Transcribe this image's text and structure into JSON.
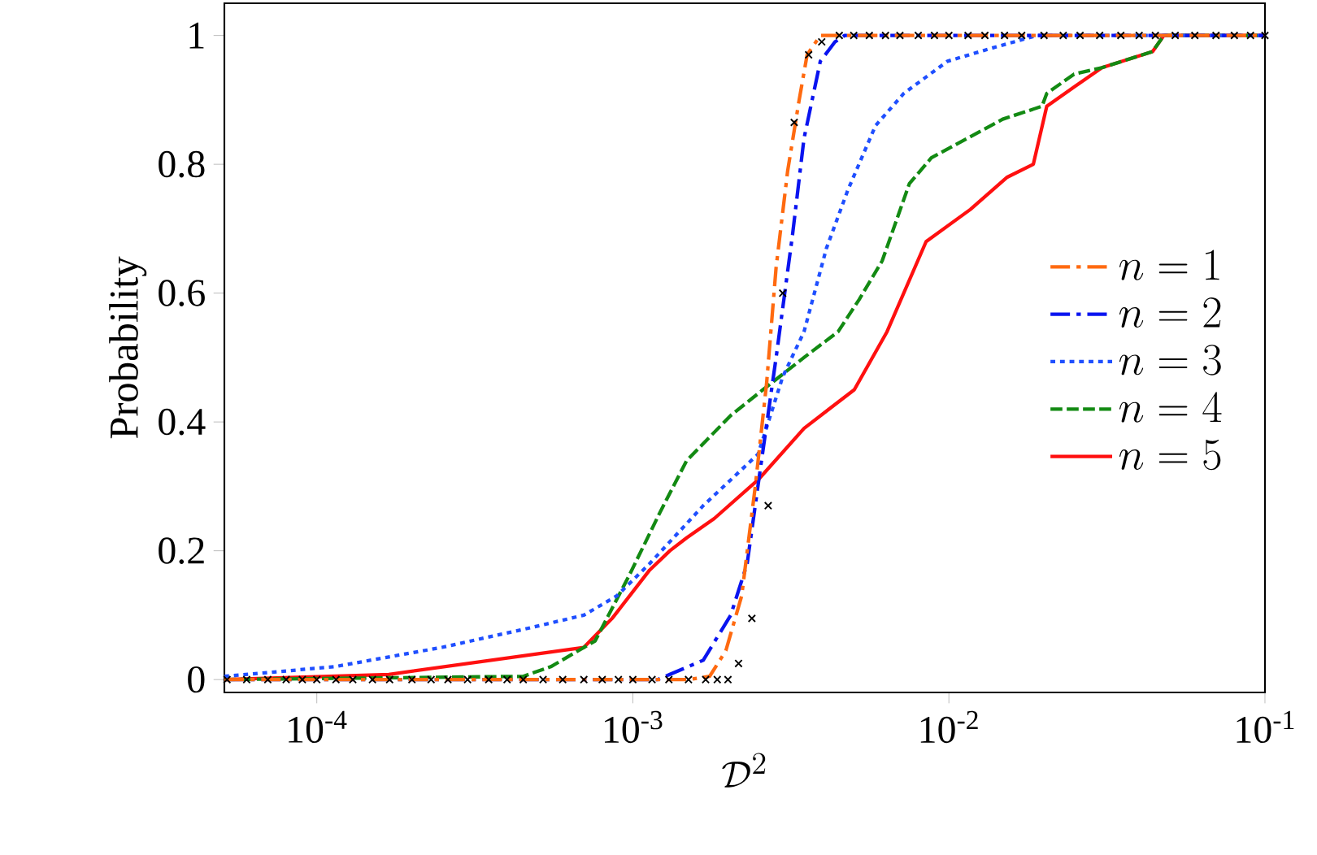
{
  "chart_data": {
    "type": "line",
    "xlabel": "\\mathcal{D}^2",
    "ylabel": "Probability",
    "log": "x",
    "xlim": [
      5.1e-05,
      0.1
    ],
    "ylim": [
      -0.02,
      1.05
    ],
    "xticks": [
      {
        "value": 0.0001,
        "label": "10$^{-4}$"
      },
      {
        "value": 0.001,
        "label": "10$^{-3}$"
      },
      {
        "value": 0.01,
        "label": "10$^{-2}$"
      },
      {
        "value": 0.1,
        "label": "10$^{-1}$"
      }
    ],
    "yticks": [
      {
        "value": 0,
        "label": "0"
      },
      {
        "value": 0.2,
        "label": "0.2"
      },
      {
        "value": 0.4,
        "label": "0.4"
      },
      {
        "value": 0.6,
        "label": "0.6"
      },
      {
        "value": 0.8,
        "label": "0.8"
      },
      {
        "value": 1,
        "label": "1"
      }
    ],
    "legend": "right",
    "grid": false,
    "marker": "none",
    "series": [
      {
        "name": "n = 1",
        "color": "#ff6a10",
        "line_style": "dashdot",
        "x": [
          5.1e-05,
          0.0015,
          0.00175,
          0.00197,
          0.00221,
          0.00244,
          0.00265,
          0.00284,
          0.00309,
          0.00336,
          0.00356,
          0.00392,
          0.1
        ],
        "values": [
          0,
          0,
          0.005,
          0.045,
          0.13,
          0.3,
          0.46,
          0.64,
          0.79,
          0.9,
          0.97,
          1,
          1
        ]
      },
      {
        "name": "n = 2",
        "color": "#0a14f0",
        "line_style": "dashdot",
        "x": [
          5.1e-05,
          0.0012,
          0.00131,
          0.00167,
          0.00204,
          0.0023,
          0.00252,
          0.00284,
          0.0032,
          0.00348,
          0.00392,
          0.00436,
          0.00468,
          0.1
        ],
        "values": [
          0,
          0,
          0.008,
          0.03,
          0.1,
          0.18,
          0.32,
          0.5,
          0.69,
          0.84,
          0.96,
          0.99,
          1,
          1
        ]
      },
      {
        "name": "n = 3",
        "color": "#1f4fff",
        "line_style": "dotted",
        "x": [
          5.1e-05,
          0.000114,
          0.000249,
          0.00047,
          0.0007,
          0.00089,
          0.00113,
          0.00167,
          0.00249,
          0.00298,
          0.00348,
          0.0041,
          0.00479,
          0.00586,
          0.0072,
          0.0099,
          0.0136,
          0.019,
          0.1
        ],
        "values": [
          0.005,
          0.02,
          0.05,
          0.08,
          0.1,
          0.13,
          0.18,
          0.27,
          0.35,
          0.47,
          0.54,
          0.67,
          0.76,
          0.86,
          0.91,
          0.96,
          0.98,
          1,
          1
        ]
      },
      {
        "name": "n = 4",
        "color": "#138a13",
        "line_style": "dashed",
        "x": [
          5.1e-05,
          0.00045,
          0.00055,
          0.00076,
          0.00097,
          0.00122,
          0.00148,
          0.00204,
          0.00258,
          0.00348,
          0.00446,
          0.0052,
          0.00615,
          0.0075,
          0.0088,
          0.0148,
          0.0197,
          0.0204,
          0.0249,
          0.0305,
          0.0441,
          0.0479,
          0.1
        ],
        "values": [
          0,
          0.005,
          0.02,
          0.06,
          0.16,
          0.26,
          0.34,
          0.41,
          0.45,
          0.5,
          0.54,
          0.59,
          0.65,
          0.77,
          0.81,
          0.87,
          0.89,
          0.91,
          0.94,
          0.95,
          0.975,
          1,
          1
        ]
      },
      {
        "name": "n = 5",
        "color": "#ff1010",
        "line_style": "solid",
        "x": [
          5.1e-05,
          0.000169,
          0.0007,
          0.00086,
          0.00113,
          0.00131,
          0.00148,
          0.00181,
          0.00249,
          0.00348,
          0.00502,
          0.00637,
          0.00847,
          0.0117,
          0.0153,
          0.0185,
          0.0204,
          0.0249,
          0.0305,
          0.0441,
          0.0479,
          0.1
        ],
        "values": [
          0,
          0.008,
          0.05,
          0.095,
          0.17,
          0.2,
          0.22,
          0.25,
          0.31,
          0.39,
          0.45,
          0.54,
          0.68,
          0.73,
          0.78,
          0.8,
          0.89,
          0.92,
          0.95,
          0.975,
          1,
          1
        ]
      },
      {
        "type": "scatter",
        "color": "#000000",
        "marker": "cross",
        "x": [
          5.2e-05,
          6e-05,
          7e-05,
          8e-05,
          9e-05,
          0.0001,
          0.000115,
          0.00013,
          0.00015,
          0.00017,
          0.0002,
          0.00023,
          0.00026,
          0.0003,
          0.00035,
          0.0004,
          0.00045,
          0.00052,
          0.0006,
          0.0007,
          0.0008,
          0.0009,
          0.001,
          0.00115,
          0.0013,
          0.0015,
          0.0017,
          0.00185,
          0.002,
          0.00216,
          0.00238,
          0.00268,
          0.00298,
          0.00324,
          0.0036,
          0.00396,
          0.0045,
          0.005,
          0.0056,
          0.0063,
          0.007,
          0.008,
          0.009,
          0.01,
          0.0115,
          0.013,
          0.015,
          0.017,
          0.02,
          0.023,
          0.026,
          0.03,
          0.035,
          0.04,
          0.045,
          0.052,
          0.06,
          0.07,
          0.08,
          0.09,
          0.1
        ],
        "values": [
          0,
          0,
          0,
          0,
          0,
          0,
          0,
          0,
          0,
          0,
          0,
          0,
          0,
          0,
          0,
          0,
          0,
          0,
          0,
          0,
          0,
          0,
          0,
          0,
          0,
          0,
          0,
          0,
          0,
          0.025,
          0.095,
          0.27,
          0.6,
          0.865,
          0.97,
          0.99,
          1,
          1,
          1,
          1,
          1,
          1,
          1,
          1,
          1,
          1,
          1,
          1,
          1,
          1,
          1,
          1,
          1,
          1,
          1,
          1,
          1,
          1,
          1,
          1,
          1
        ]
      }
    ]
  }
}
